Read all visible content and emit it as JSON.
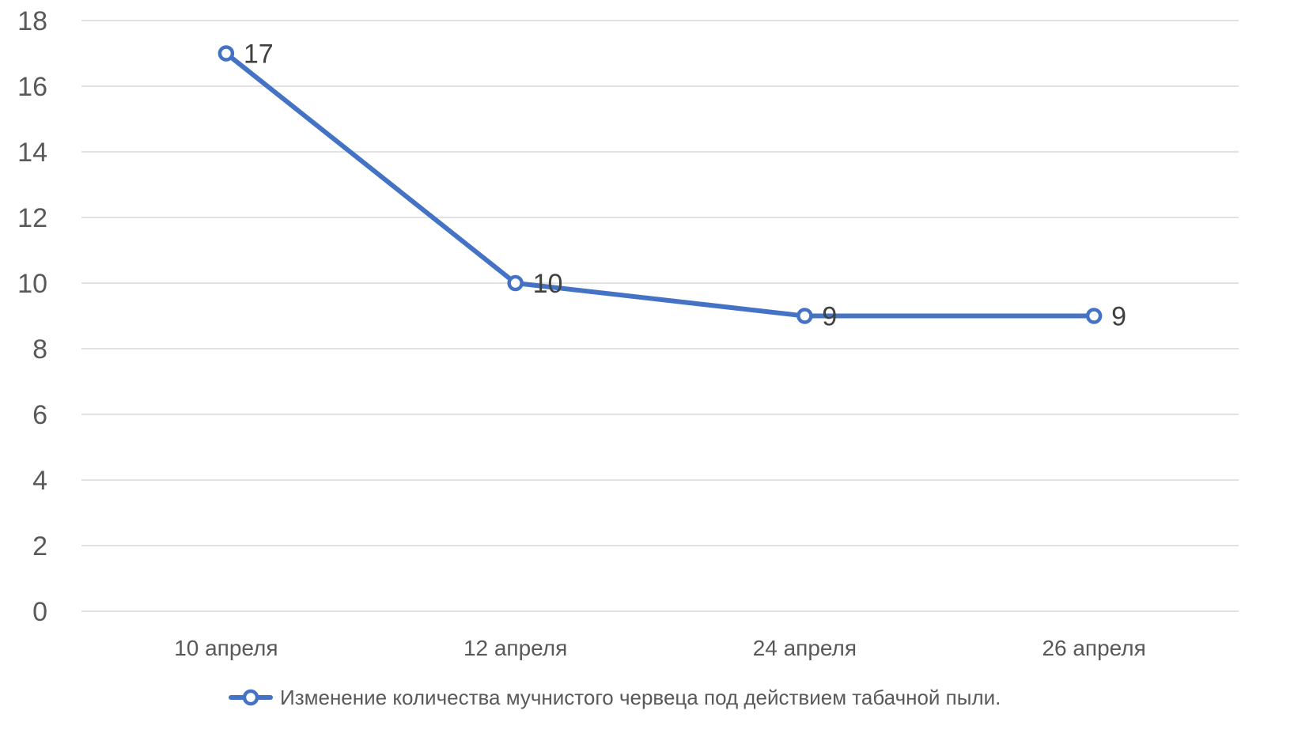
{
  "chart_data": {
    "type": "line",
    "title": "",
    "xlabel": "",
    "ylabel": "",
    "categories": [
      "10 апреля",
      "12 апреля",
      "24 апреля",
      "26 апреля"
    ],
    "series": [
      {
        "name": "Изменение количества мучнистого червеца под действием табачной пыли.",
        "values": [
          17,
          10,
          9,
          9
        ],
        "color": "#4472c4",
        "data_labels": [
          "17",
          "10",
          "9",
          "9"
        ]
      }
    ],
    "ylim": [
      0,
      18
    ],
    "yticks": [
      "0",
      "2",
      "4",
      "6",
      "8",
      "10",
      "12",
      "14",
      "16",
      "18"
    ],
    "grid": true,
    "legend_position": "bottom"
  }
}
